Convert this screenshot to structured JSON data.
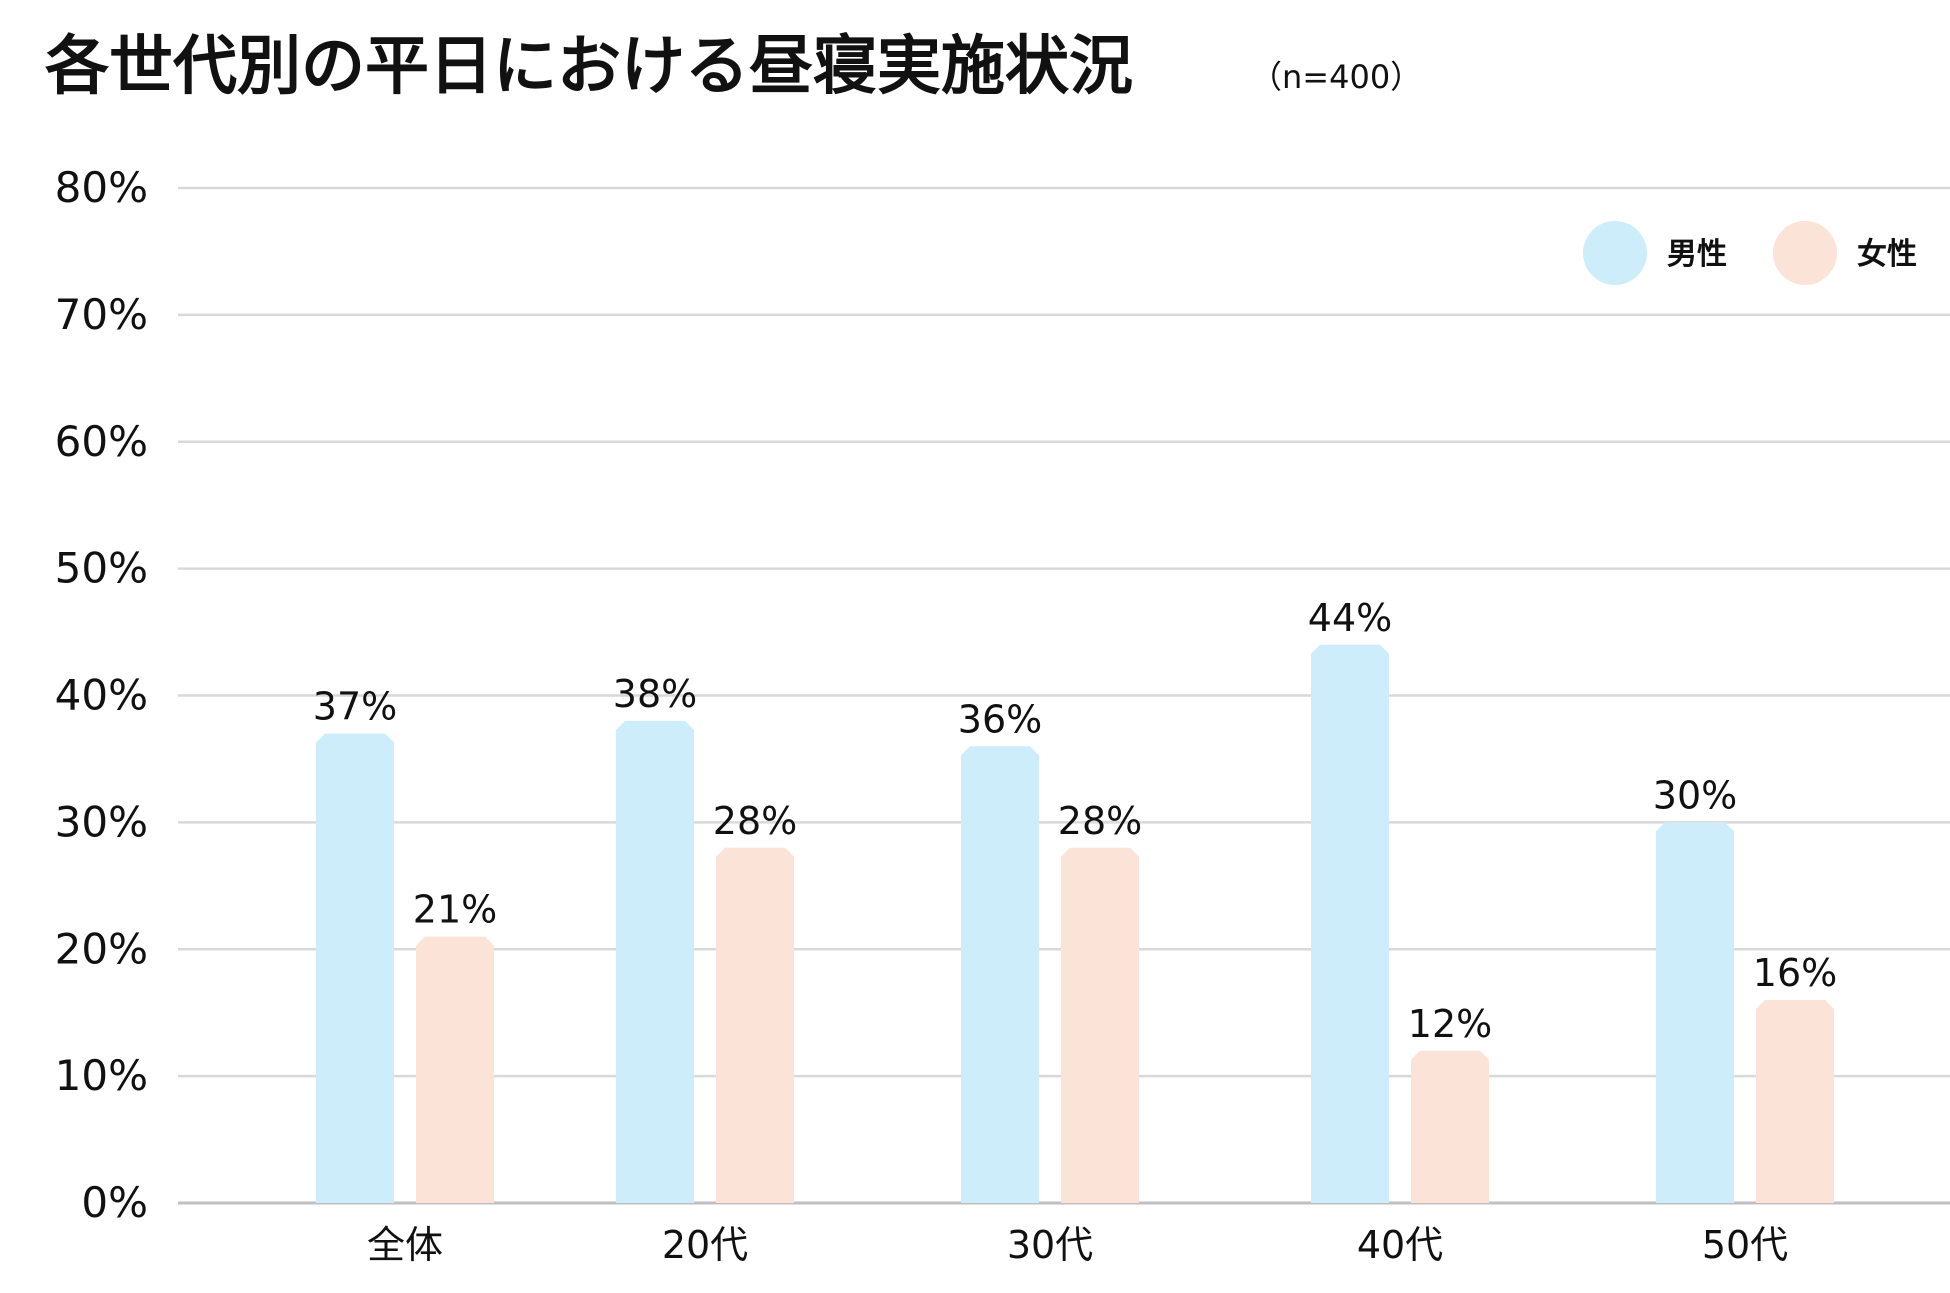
{
  "chart_data": {
    "type": "bar",
    "title": "各世代別の平日における昼寝実施状況",
    "subtitle": "（n=400）",
    "categories": [
      "全体",
      "20代",
      "30代",
      "40代",
      "50代"
    ],
    "series": [
      {
        "name": "男性",
        "values": [
          37,
          38,
          36,
          44,
          30
        ],
        "labels": [
          "37%",
          "38%",
          "36%",
          "44%",
          "30%"
        ]
      },
      {
        "name": "女性",
        "values": [
          21,
          28,
          28,
          12,
          16
        ],
        "labels": [
          "21%",
          "28%",
          "28%",
          "12%",
          "16%"
        ]
      }
    ],
    "y_ticks": [
      "0%",
      "10%",
      "20%",
      "30%",
      "40%",
      "50%",
      "60%",
      "70%",
      "80%"
    ],
    "ylim": [
      0,
      80
    ],
    "grid": true,
    "legend_position": "top-right",
    "colors": {
      "男性": "#CDEDFA",
      "女性": "#FBE3D8",
      "grid": "#D9D9D9",
      "axis": "#BFBFBF",
      "text": "#111111"
    }
  }
}
